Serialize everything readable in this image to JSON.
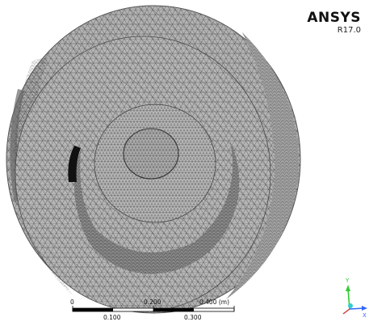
{
  "brand": {
    "name": "ANSYS",
    "version": "R17.0"
  },
  "scale_bar": {
    "top_labels": [
      "0",
      "0.200",
      "0.400 (m)"
    ],
    "bottom_labels": [
      "0.100",
      "0.300"
    ]
  },
  "triad": {
    "axes": [
      "Y",
      "X"
    ]
  },
  "colors": {
    "mesh_fill": "#b3b3b3",
    "mesh_line": "#3a3a3a",
    "y_axis": "#33cc33",
    "x_axis": "#3366ff",
    "origin": "#33cccc"
  }
}
